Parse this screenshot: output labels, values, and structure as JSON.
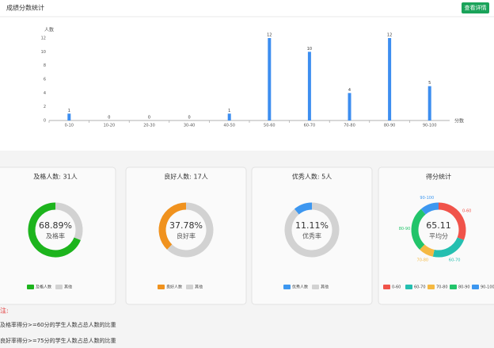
{
  "header": {
    "title": "成绩分数统计",
    "button": "查看详情"
  },
  "chart_data": [
    {
      "type": "bar",
      "y_label": "人数",
      "x_label": "分数",
      "color": "#3d8ef0",
      "categories": [
        "0-10",
        "10-20",
        "20-30",
        "30-40",
        "40-50",
        "50-60",
        "60-70",
        "70-80",
        "80-90",
        "90-100"
      ],
      "values": [
        1,
        0,
        0,
        0,
        1,
        12,
        10,
        4,
        12,
        5
      ],
      "ylim": [
        0,
        12
      ],
      "yticks": [
        0,
        2,
        4,
        6,
        8,
        10,
        12
      ]
    },
    {
      "type": "pie",
      "title": "及格人数: 31人",
      "center": "68.89%",
      "center_label": "及格率",
      "categories": [
        "及格人数",
        "其他"
      ],
      "values": [
        31,
        14
      ],
      "colors": [
        "#1db41d",
        "#d2d2d2"
      ]
    },
    {
      "type": "pie",
      "title": "良好人数: 17人",
      "center": "37.78%",
      "center_label": "良好率",
      "categories": [
        "良好人数",
        "其他"
      ],
      "values": [
        17,
        28
      ],
      "colors": [
        "#f0921e",
        "#d2d2d2"
      ]
    },
    {
      "type": "pie",
      "title": "优秀人数: 5人",
      "center": "11.11%",
      "center_label": "优秀率",
      "categories": [
        "优秀人数",
        "其他"
      ],
      "values": [
        5,
        40
      ],
      "colors": [
        "#3d97f0",
        "#d2d2d2"
      ]
    },
    {
      "type": "pie",
      "title": "得分统计",
      "center": "65.11",
      "center_label": "平均分",
      "slice_labels": true,
      "categories": [
        "0-60",
        "60-70",
        "70-80",
        "80-90",
        "90-100"
      ],
      "values": [
        14,
        10,
        4,
        12,
        5
      ],
      "colors": [
        "#f0534a",
        "#24bfb0",
        "#f5b942",
        "#22c46a",
        "#3d97f0"
      ]
    }
  ],
  "notes": {
    "title": "注:",
    "lines": [
      "及格率得分>=60分的学生人数占总人数的比重",
      "良好率得分>=75分的学生人数占总人数的比重"
    ]
  }
}
